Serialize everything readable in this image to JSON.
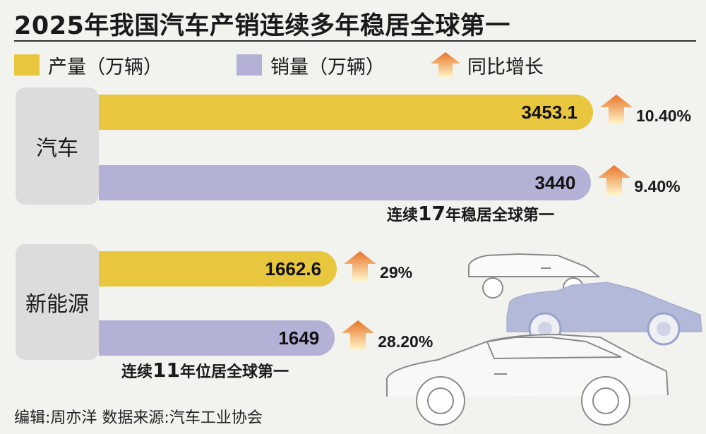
{
  "title": "2025年我国汽车产销连续多年稳居全球第一",
  "legend": {
    "production": "产量（万辆）",
    "sales": "销量（万辆）",
    "growth": "同比增长"
  },
  "colors": {
    "production": "#e8c73f",
    "sales": "#b3b1d6",
    "category_box": "#dcdcdc",
    "arrow_top": "#e8742a",
    "arrow_bottom": "#fff6c8"
  },
  "chart_data": {
    "type": "bar",
    "orientation": "horizontal",
    "title": "2025年我国汽车产销连续多年稳居全球第一",
    "unit": "万辆",
    "categories": [
      "汽车",
      "新能源"
    ],
    "series": [
      {
        "name": "产量（万辆）",
        "values": [
          3453.1,
          1662.6
        ],
        "labels": [
          "3453.1",
          "1662.6"
        ],
        "growth_labels": [
          "10.40%",
          "29%"
        ]
      },
      {
        "name": "销量（万辆）",
        "values": [
          3440,
          1649
        ],
        "labels": [
          "3440",
          "1649"
        ],
        "growth_labels": [
          "9.40%",
          "28.20%"
        ]
      }
    ],
    "xlim": [
      0,
      3453.1
    ]
  },
  "notes": {
    "auto": {
      "prefix": "连续",
      "number": "17",
      "suffix": "年稳居全球第一"
    },
    "nev": {
      "prefix": "连续",
      "number": "11",
      "suffix": "年位居全球第一"
    }
  },
  "footer": "编辑:周亦洋   数据来源:汽车工业协会"
}
